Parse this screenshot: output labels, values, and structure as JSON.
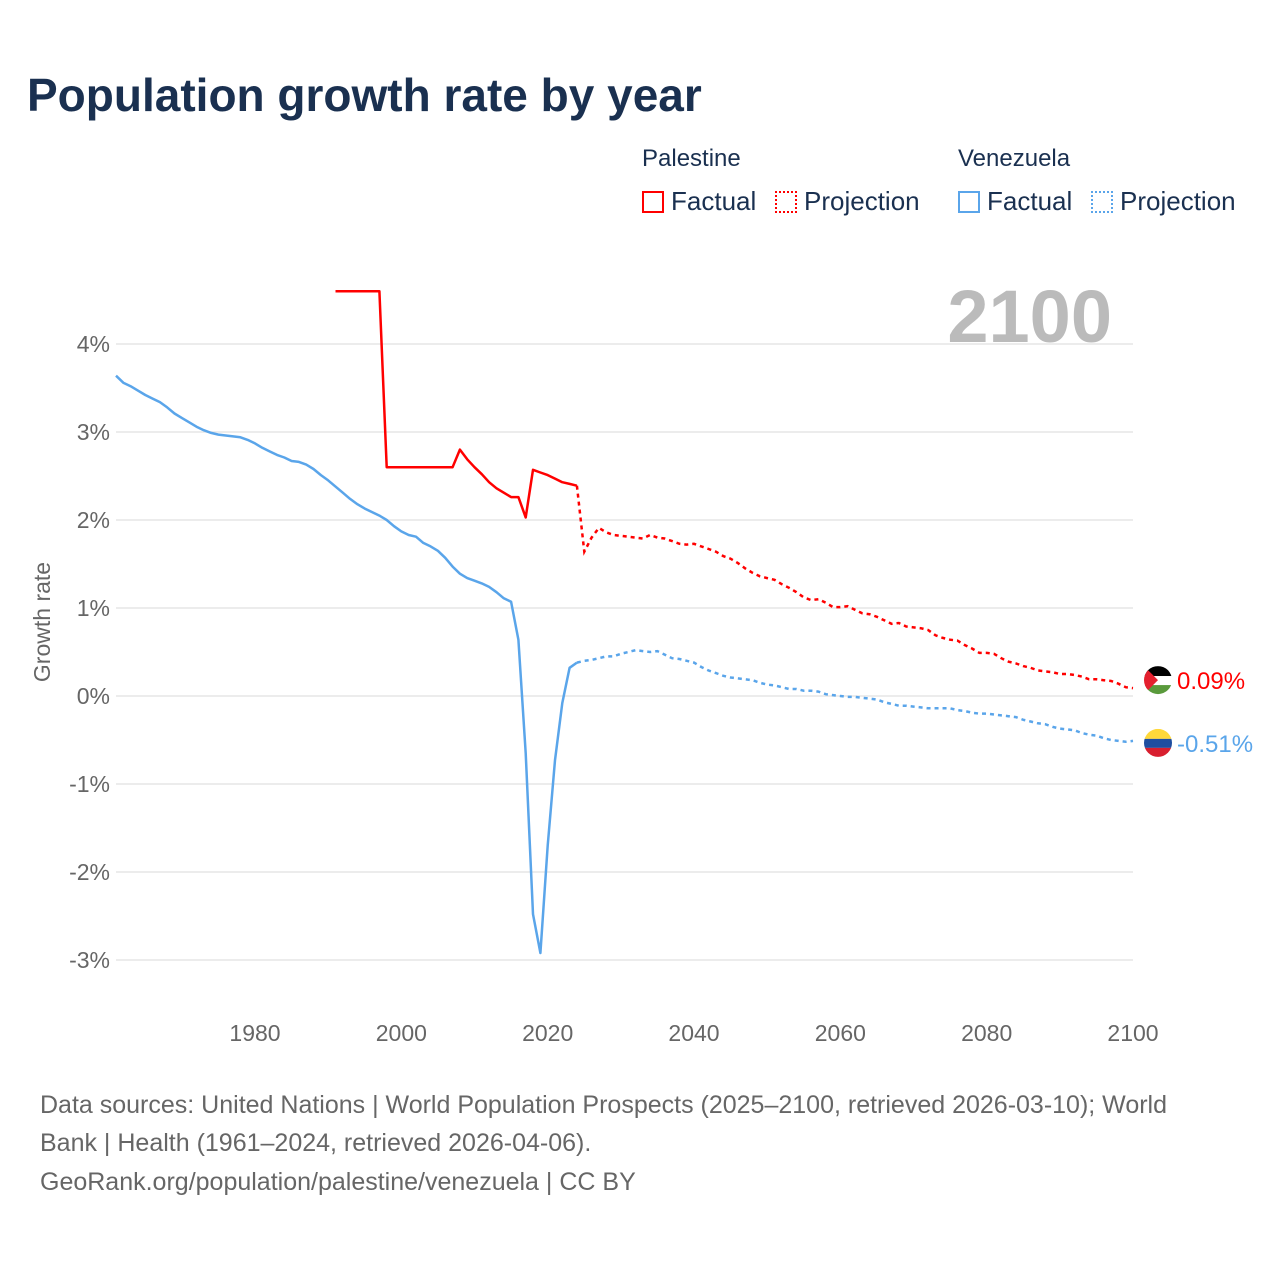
{
  "title": "Population growth rate by year",
  "legend": {
    "groups": [
      {
        "name": "Palestine",
        "factual": "Factual",
        "projection": "Projection",
        "color": "#ff0000"
      },
      {
        "name": "Venezuela",
        "factual": "Factual",
        "projection": "Projection",
        "color": "#5aa5ea"
      }
    ]
  },
  "footer": {
    "line1": "Data sources: United Nations | World Population Prospects (2025–2100, retrieved 2026-03-10); World",
    "line2": "Bank | Health (1961–2024, retrieved 2026-04-06).",
    "line3": "GeoRank.org/population/palestine/venezuela | CC BY"
  },
  "chart_data": {
    "type": "line",
    "title": "Population growth rate by year",
    "ylabel": "Growth rate",
    "xlabel": "",
    "current_year_label": "2100",
    "xlim": [
      1961,
      2100
    ],
    "ylim": [
      -3.4,
      4.8
    ],
    "x_ticks": [
      1980,
      2000,
      2020,
      2040,
      2060,
      2080,
      2100
    ],
    "y_ticks": [
      {
        "v": 4,
        "label": "4%"
      },
      {
        "v": 3,
        "label": "3%"
      },
      {
        "v": 2,
        "label": "2%"
      },
      {
        "v": 1,
        "label": "1%"
      },
      {
        "v": 0,
        "label": "0%"
      },
      {
        "v": -1,
        "label": "-1%"
      },
      {
        "v": -2,
        "label": "-2%"
      },
      {
        "v": -3,
        "label": "-3%"
      }
    ],
    "grid": true,
    "series": [
      {
        "name": "Palestine",
        "color": "#ff0000",
        "end_label": "0.09%",
        "flag": "palestine-flag",
        "factual": {
          "start": 1991,
          "values": [
            4.6,
            4.6,
            4.6,
            4.6,
            4.6,
            4.6,
            4.6,
            2.6,
            2.6,
            2.6,
            2.6,
            2.6,
            2.6,
            2.6,
            2.6,
            2.6,
            2.6,
            2.8,
            2.69,
            2.6,
            2.52,
            2.43,
            2.36,
            2.31,
            2.26,
            2.26,
            2.03,
            2.57,
            2.54,
            2.51,
            2.47,
            2.43,
            2.41,
            2.39
          ]
        },
        "projection": {
          "start": 2025,
          "values": [
            1.64,
            1.8,
            1.91,
            1.86,
            1.83,
            1.82,
            1.81,
            1.8,
            1.79,
            1.83,
            1.8,
            1.79,
            1.76,
            1.73,
            1.72,
            1.73,
            1.7,
            1.67,
            1.64,
            1.59,
            1.56,
            1.51,
            1.45,
            1.4,
            1.36,
            1.34,
            1.32,
            1.27,
            1.23,
            1.18,
            1.12,
            1.09,
            1.1,
            1.06,
            1.01,
            1.01,
            1.02,
            0.98,
            0.94,
            0.93,
            0.9,
            0.86,
            0.82,
            0.83,
            0.79,
            0.78,
            0.77,
            0.75,
            0.69,
            0.66,
            0.64,
            0.63,
            0.58,
            0.54,
            0.49,
            0.49,
            0.48,
            0.43,
            0.39,
            0.37,
            0.34,
            0.32,
            0.29,
            0.28,
            0.27,
            0.25,
            0.25,
            0.24,
            0.22,
            0.19,
            0.19,
            0.18,
            0.17,
            0.14,
            0.1,
            0.09
          ]
        }
      },
      {
        "name": "Venezuela",
        "color": "#5aa5ea",
        "end_label": "-0.51%",
        "flag": "venezuela-flag",
        "factual": {
          "start": 1961,
          "values": [
            3.64,
            3.56,
            3.52,
            3.47,
            3.42,
            3.38,
            3.34,
            3.28,
            3.21,
            3.16,
            3.11,
            3.06,
            3.02,
            2.99,
            2.97,
            2.96,
            2.95,
            2.94,
            2.91,
            2.87,
            2.82,
            2.78,
            2.74,
            2.71,
            2.67,
            2.66,
            2.63,
            2.58,
            2.51,
            2.45,
            2.38,
            2.31,
            2.24,
            2.18,
            2.13,
            2.09,
            2.05,
            2.0,
            1.93,
            1.87,
            1.83,
            1.81,
            1.74,
            1.7,
            1.65,
            1.57,
            1.47,
            1.39,
            1.34,
            1.31,
            1.28,
            1.24,
            1.18,
            1.11,
            1.07,
            0.64,
            -0.65,
            -2.48,
            -2.92,
            -1.7,
            -0.73,
            -0.08,
            0.32,
            0.38
          ]
        },
        "projection": {
          "start": 2025,
          "values": [
            0.4,
            0.41,
            0.43,
            0.45,
            0.45,
            0.48,
            0.5,
            0.52,
            0.51,
            0.5,
            0.51,
            0.47,
            0.43,
            0.42,
            0.4,
            0.38,
            0.33,
            0.29,
            0.26,
            0.23,
            0.21,
            0.2,
            0.19,
            0.18,
            0.15,
            0.13,
            0.12,
            0.1,
            0.08,
            0.08,
            0.06,
            0.06,
            0.05,
            0.02,
            0.01,
            0.0,
            -0.01,
            -0.01,
            -0.02,
            -0.03,
            -0.04,
            -0.07,
            -0.09,
            -0.11,
            -0.11,
            -0.12,
            -0.13,
            -0.14,
            -0.14,
            -0.14,
            -0.14,
            -0.16,
            -0.17,
            -0.19,
            -0.2,
            -0.2,
            -0.21,
            -0.22,
            -0.23,
            -0.24,
            -0.27,
            -0.29,
            -0.31,
            -0.32,
            -0.35,
            -0.37,
            -0.38,
            -0.39,
            -0.42,
            -0.44,
            -0.45,
            -0.48,
            -0.5,
            -0.51,
            -0.52,
            -0.51
          ]
        }
      }
    ]
  }
}
